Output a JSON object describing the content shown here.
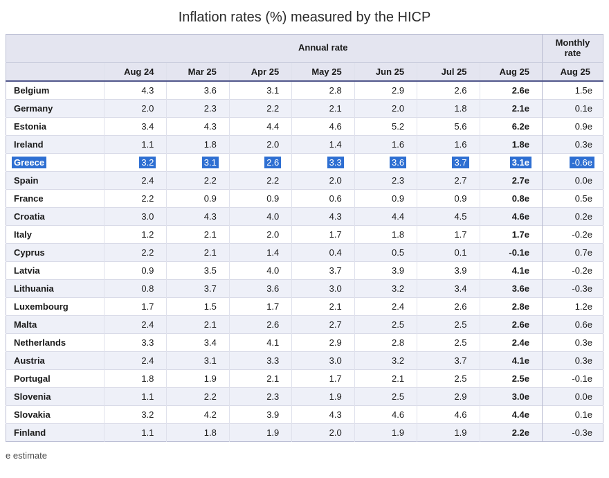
{
  "chart_data": {
    "type": "table",
    "title": "Inflation rates (%) measured by the HICP",
    "column_groups": [
      {
        "label": "Annual rate",
        "columns": [
          "Aug 24",
          "Mar 25",
          "Apr 25",
          "May 25",
          "Jun 25",
          "Jul 25",
          "Aug 25"
        ]
      },
      {
        "label": "Monthly rate",
        "columns": [
          "Aug 25"
        ]
      }
    ],
    "rows": [
      {
        "country": "Belgium",
        "annual": [
          "4.3",
          "3.6",
          "3.1",
          "2.8",
          "2.9",
          "2.6",
          "2.6e"
        ],
        "monthly": "1.5e",
        "selected": false
      },
      {
        "country": "Germany",
        "annual": [
          "2.0",
          "2.3",
          "2.2",
          "2.1",
          "2.0",
          "1.8",
          "2.1e"
        ],
        "monthly": "0.1e",
        "selected": false
      },
      {
        "country": "Estonia",
        "annual": [
          "3.4",
          "4.3",
          "4.4",
          "4.6",
          "5.2",
          "5.6",
          "6.2e"
        ],
        "monthly": "0.9e",
        "selected": false
      },
      {
        "country": "Ireland",
        "annual": [
          "1.1",
          "1.8",
          "2.0",
          "1.4",
          "1.6",
          "1.6",
          "1.8e"
        ],
        "monthly": "0.3e",
        "selected": false
      },
      {
        "country": "Greece",
        "annual": [
          "3.2",
          "3.1",
          "2.6",
          "3.3",
          "3.6",
          "3.7",
          "3.1e"
        ],
        "monthly": "-0.6e",
        "selected": true
      },
      {
        "country": "Spain",
        "annual": [
          "2.4",
          "2.2",
          "2.2",
          "2.0",
          "2.3",
          "2.7",
          "2.7e"
        ],
        "monthly": "0.0e",
        "selected": false
      },
      {
        "country": "France",
        "annual": [
          "2.2",
          "0.9",
          "0.9",
          "0.6",
          "0.9",
          "0.9",
          "0.8e"
        ],
        "monthly": "0.5e",
        "selected": false
      },
      {
        "country": "Croatia",
        "annual": [
          "3.0",
          "4.3",
          "4.0",
          "4.3",
          "4.4",
          "4.5",
          "4.6e"
        ],
        "monthly": "0.2e",
        "selected": false
      },
      {
        "country": "Italy",
        "annual": [
          "1.2",
          "2.1",
          "2.0",
          "1.7",
          "1.8",
          "1.7",
          "1.7e"
        ],
        "monthly": "-0.2e",
        "selected": false
      },
      {
        "country": "Cyprus",
        "annual": [
          "2.2",
          "2.1",
          "1.4",
          "0.4",
          "0.5",
          "0.1",
          "-0.1e"
        ],
        "monthly": "0.7e",
        "selected": false
      },
      {
        "country": "Latvia",
        "annual": [
          "0.9",
          "3.5",
          "4.0",
          "3.7",
          "3.9",
          "3.9",
          "4.1e"
        ],
        "monthly": "-0.2e",
        "selected": false
      },
      {
        "country": "Lithuania",
        "annual": [
          "0.8",
          "3.7",
          "3.6",
          "3.0",
          "3.2",
          "3.4",
          "3.6e"
        ],
        "monthly": "-0.3e",
        "selected": false
      },
      {
        "country": "Luxembourg",
        "annual": [
          "1.7",
          "1.5",
          "1.7",
          "2.1",
          "2.4",
          "2.6",
          "2.8e"
        ],
        "monthly": "1.2e",
        "selected": false
      },
      {
        "country": "Malta",
        "annual": [
          "2.4",
          "2.1",
          "2.6",
          "2.7",
          "2.5",
          "2.5",
          "2.6e"
        ],
        "monthly": "0.6e",
        "selected": false
      },
      {
        "country": "Netherlands",
        "annual": [
          "3.3",
          "3.4",
          "4.1",
          "2.9",
          "2.8",
          "2.5",
          "2.4e"
        ],
        "monthly": "0.3e",
        "selected": false
      },
      {
        "country": "Austria",
        "annual": [
          "2.4",
          "3.1",
          "3.3",
          "3.0",
          "3.2",
          "3.7",
          "4.1e"
        ],
        "monthly": "0.3e",
        "selected": false
      },
      {
        "country": "Portugal",
        "annual": [
          "1.8",
          "1.9",
          "2.1",
          "1.7",
          "2.1",
          "2.5",
          "2.5e"
        ],
        "monthly": "-0.1e",
        "selected": false
      },
      {
        "country": "Slovenia",
        "annual": [
          "1.1",
          "2.2",
          "2.3",
          "1.9",
          "2.5",
          "2.9",
          "3.0e"
        ],
        "monthly": "0.0e",
        "selected": false
      },
      {
        "country": "Slovakia",
        "annual": [
          "3.2",
          "4.2",
          "3.9",
          "4.3",
          "4.6",
          "4.6",
          "4.4e"
        ],
        "monthly": "0.1e",
        "selected": false
      },
      {
        "country": "Finland",
        "annual": [
          "1.1",
          "1.8",
          "1.9",
          "2.0",
          "1.9",
          "1.9",
          "2.2e"
        ],
        "monthly": "-0.3e",
        "selected": false
      }
    ],
    "footnote": "e estimate",
    "highlighted_row": "Greece"
  },
  "colors": {
    "selection_bg": "#2e6fd2",
    "selection_text": "#ffffff",
    "header_bg": "#e4e5f0",
    "alt_row_bg": "#eef0f8"
  }
}
